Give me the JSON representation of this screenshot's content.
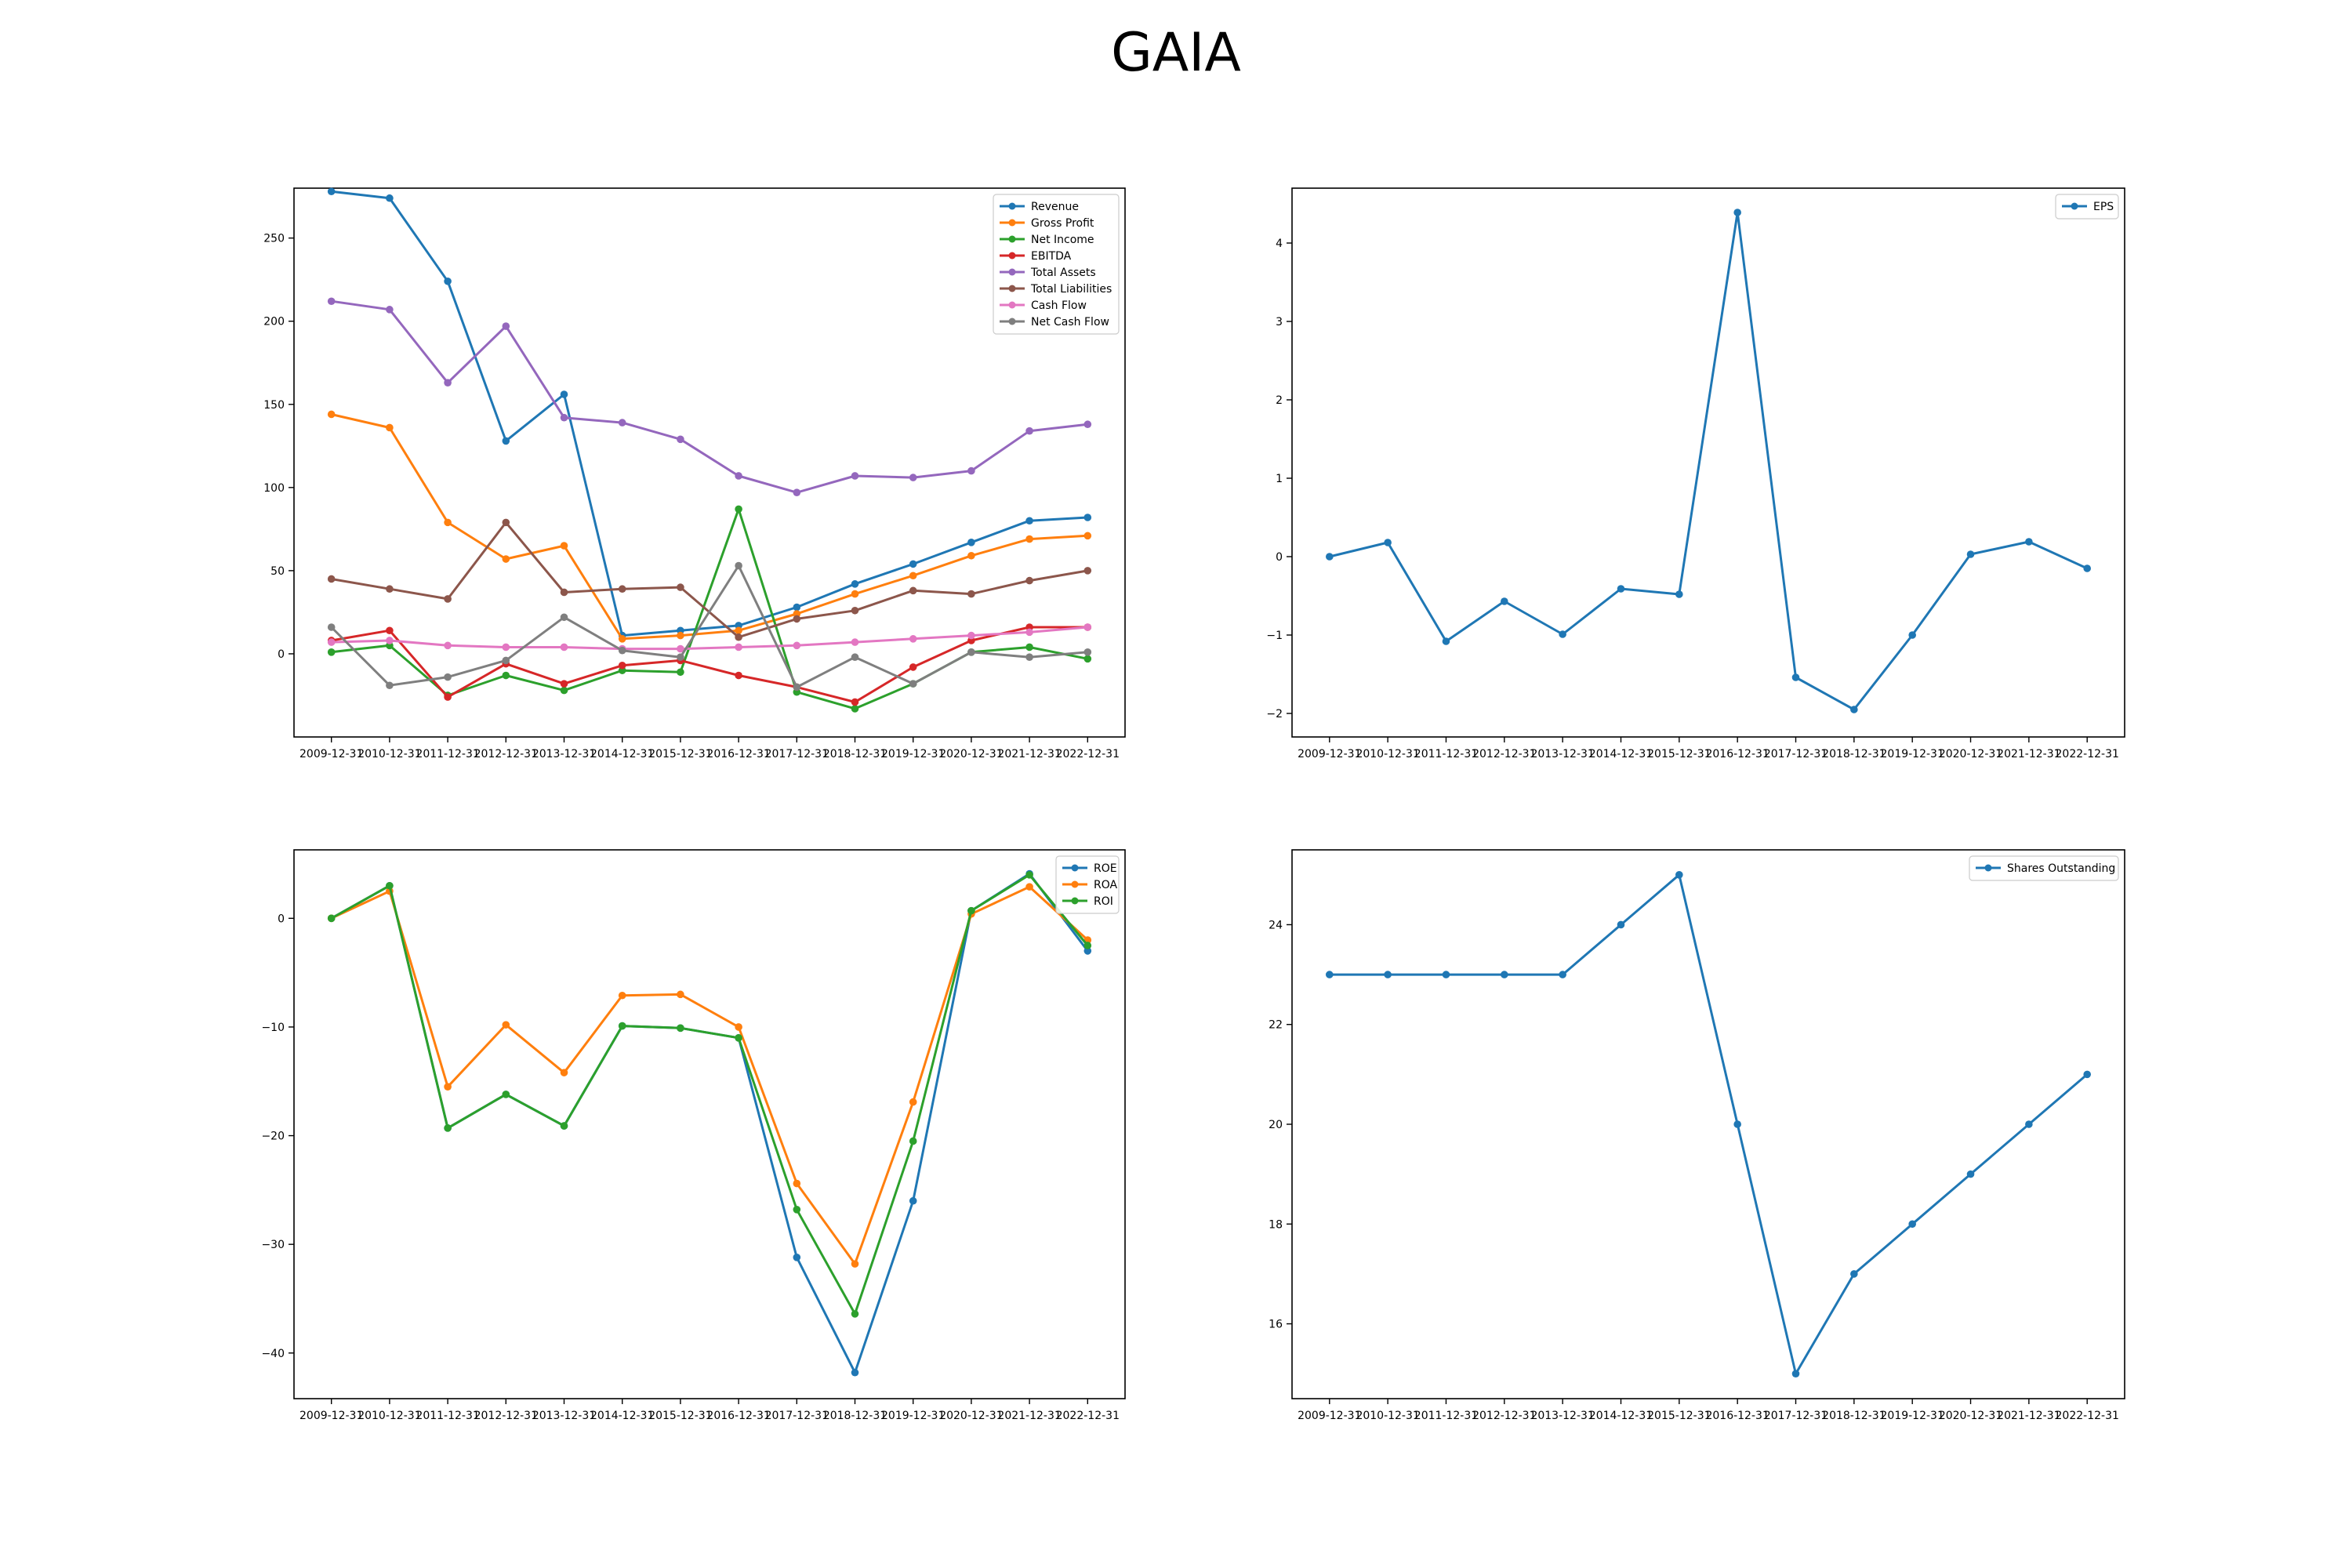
{
  "figure_title": "GAIA",
  "chart_data": [
    {
      "type": "line",
      "x": [
        "2009-12-31",
        "2010-12-31",
        "2011-12-31",
        "2012-12-31",
        "2013-12-31",
        "2014-12-31",
        "2015-12-31",
        "2016-12-31",
        "2017-12-31",
        "2018-12-31",
        "2019-12-31",
        "2020-12-31",
        "2021-12-31",
        "2022-12-31"
      ],
      "ylim": [
        -50,
        280
      ],
      "yticks": [
        0,
        50,
        100,
        150,
        200,
        250
      ],
      "legend_position": "top-right",
      "series": [
        {
          "name": "Revenue",
          "color": "#1f77b4",
          "values": [
            278,
            274,
            224,
            128,
            156,
            11,
            14,
            17,
            28,
            42,
            54,
            67,
            80,
            82
          ]
        },
        {
          "name": "Gross Profit",
          "color": "#ff7f0e",
          "values": [
            144,
            136,
            79,
            57,
            65,
            9,
            11,
            14,
            24,
            36,
            47,
            59,
            69,
            71
          ]
        },
        {
          "name": "Net Income",
          "color": "#2ca02c",
          "values": [
            1,
            5,
            -25,
            -13,
            -22,
            -10,
            -11,
            87,
            -23,
            -33,
            -18,
            1,
            4,
            -3
          ]
        },
        {
          "name": "EBITDA",
          "color": "#d62728",
          "values": [
            8,
            14,
            -26,
            -6,
            -18,
            -7,
            -4,
            -13,
            -20,
            -29,
            -8,
            8,
            16,
            16
          ]
        },
        {
          "name": "Total Assets",
          "color": "#9467bd",
          "values": [
            212,
            207,
            163,
            197,
            142,
            139,
            129,
            107,
            97,
            107,
            106,
            110,
            134,
            138
          ]
        },
        {
          "name": "Total Liabilities",
          "color": "#8c564b",
          "values": [
            45,
            39,
            33,
            79,
            37,
            39,
            40,
            10,
            21,
            26,
            38,
            36,
            44,
            50
          ]
        },
        {
          "name": "Cash Flow",
          "color": "#e377c2",
          "values": [
            7,
            8,
            5,
            4,
            4,
            3,
            3,
            4,
            5,
            7,
            9,
            11,
            13,
            16
          ]
        },
        {
          "name": "Net Cash Flow",
          "color": "#7f7f7f",
          "values": [
            16,
            -19,
            -14,
            -4,
            22,
            2,
            -2,
            53,
            -20,
            -2,
            -18,
            1,
            -2,
            1
          ]
        }
      ]
    },
    {
      "type": "line",
      "x": [
        "2009-12-31",
        "2010-12-31",
        "2011-12-31",
        "2012-12-31",
        "2013-12-31",
        "2014-12-31",
        "2015-12-31",
        "2016-12-31",
        "2017-12-31",
        "2018-12-31",
        "2019-12-31",
        "2020-12-31",
        "2021-12-31",
        "2022-12-31"
      ],
      "ylim": [
        -2.3,
        4.7
      ],
      "yticks": [
        -2,
        -1,
        0,
        1,
        2,
        3,
        4
      ],
      "legend_position": "top-right",
      "series": [
        {
          "name": "EPS",
          "color": "#1f77b4",
          "values": [
            0.0,
            0.18,
            -1.08,
            -0.57,
            -0.99,
            -0.41,
            -0.48,
            4.39,
            -1.54,
            -1.95,
            -1.0,
            0.03,
            0.19,
            -0.15
          ]
        }
      ]
    },
    {
      "type": "line",
      "x": [
        "2009-12-31",
        "2010-12-31",
        "2011-12-31",
        "2012-12-31",
        "2013-12-31",
        "2014-12-31",
        "2015-12-31",
        "2016-12-31",
        "2017-12-31",
        "2018-12-31",
        "2019-12-31",
        "2020-12-31",
        "2021-12-31",
        "2022-12-31"
      ],
      "ylim": [
        -44.2,
        6.3
      ],
      "yticks": [
        -40,
        -30,
        -20,
        -10,
        0
      ],
      "legend_position": "top-right",
      "series": [
        {
          "name": "ROE",
          "color": "#1f77b4",
          "values": [
            0.0,
            3.0,
            -19.3,
            -16.2,
            -19.1,
            -9.9,
            -10.1,
            -11.0,
            -31.2,
            -41.8,
            -26.0,
            0.7,
            4.1,
            -3.0
          ]
        },
        {
          "name": "ROA",
          "color": "#ff7f0e",
          "values": [
            0.0,
            2.5,
            -15.5,
            -9.8,
            -14.2,
            -7.1,
            -7.0,
            -10.0,
            -24.4,
            -31.8,
            -16.9,
            0.4,
            2.9,
            -2.0
          ]
        },
        {
          "name": "ROI",
          "color": "#2ca02c",
          "values": [
            0.0,
            3.0,
            -19.3,
            -16.2,
            -19.1,
            -9.9,
            -10.1,
            -11.0,
            -26.8,
            -36.4,
            -20.5,
            0.7,
            4.0,
            -2.5
          ]
        }
      ]
    },
    {
      "type": "line",
      "x": [
        "2009-12-31",
        "2010-12-31",
        "2011-12-31",
        "2012-12-31",
        "2013-12-31",
        "2014-12-31",
        "2015-12-31",
        "2016-12-31",
        "2017-12-31",
        "2018-12-31",
        "2019-12-31",
        "2020-12-31",
        "2021-12-31",
        "2022-12-31"
      ],
      "ylim": [
        14.5,
        25.5
      ],
      "yticks": [
        16,
        18,
        20,
        22,
        24
      ],
      "legend_position": "top-right",
      "series": [
        {
          "name": "Shares Outstanding",
          "color": "#1f77b4",
          "values": [
            23,
            23,
            23,
            23,
            23,
            24,
            25,
            20,
            15,
            17,
            18,
            19,
            20,
            21
          ]
        }
      ]
    }
  ]
}
